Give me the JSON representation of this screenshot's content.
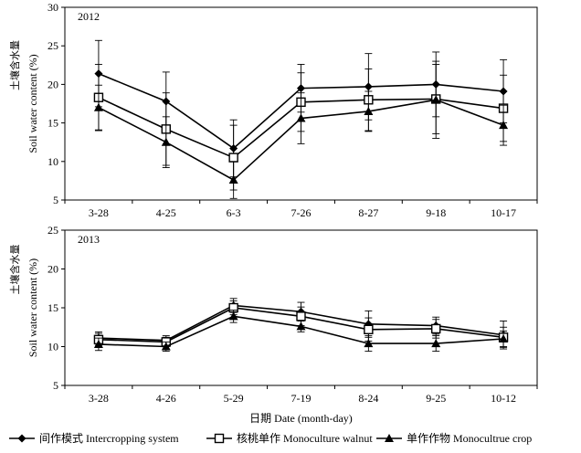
{
  "chart_data": [
    {
      "type": "line",
      "panel_label": "2012",
      "ylabel_cn": "土壤含水量",
      "ylabel_en": "Soil water content (%)",
      "categories": [
        "3-28",
        "4-25",
        "6-3",
        "7-26",
        "8-27",
        "9-18",
        "10-17"
      ],
      "ylim": [
        5,
        30
      ],
      "yticks": [
        5,
        10,
        15,
        20,
        25,
        30
      ],
      "series": [
        {
          "name": "间作模式 Intercropping system",
          "marker": "diamond",
          "values": [
            21.4,
            17.8,
            11.7,
            19.5,
            19.7,
            20.0,
            19.1
          ],
          "err": [
            4.3,
            3.8,
            3.7,
            3.1,
            4.3,
            4.2,
            4.1
          ]
        },
        {
          "name": "核桃单作 Monoculture walnut",
          "marker": "square",
          "values": [
            18.3,
            14.2,
            10.5,
            17.7,
            18.0,
            18.1,
            16.9
          ],
          "err": [
            4.3,
            4.7,
            4.2,
            3.8,
            4.0,
            4.5,
            4.3
          ]
        },
        {
          "name": "单作作物 Monocultrue crop",
          "marker": "triangle",
          "values": [
            17.0,
            12.5,
            7.6,
            15.6,
            16.5,
            18.0,
            14.7
          ],
          "err": [
            2.9,
            3.3,
            2.4,
            3.3,
            2.6,
            5.0,
            2.6
          ]
        }
      ]
    },
    {
      "type": "line",
      "panel_label": "2013",
      "ylabel_cn": "土壤含水量",
      "ylabel_en": "Soil water content (%)",
      "xlabel": "日期 Date (month-day)",
      "categories": [
        "3-28",
        "4-26",
        "5-29",
        "7-19",
        "8-24",
        "9-25",
        "10-12"
      ],
      "ylim": [
        5,
        25
      ],
      "yticks": [
        5,
        10,
        15,
        20,
        25
      ],
      "series": [
        {
          "name": "间作模式 Intercropping system",
          "marker": "diamond",
          "values": [
            11.1,
            10.8,
            15.3,
            14.5,
            12.9,
            12.7,
            11.5
          ],
          "err": [
            0.8,
            0.6,
            0.9,
            1.2,
            1.7,
            1.1,
            1.8
          ]
        },
        {
          "name": "核桃单作 Monoculture walnut",
          "marker": "square",
          "values": [
            10.9,
            10.6,
            15.0,
            13.9,
            12.2,
            12.3,
            11.2
          ],
          "err": [
            0.8,
            0.6,
            0.9,
            1.2,
            1.5,
            1.2,
            1.3
          ]
        },
        {
          "name": "单作作物 Monocultrue crop",
          "marker": "triangle",
          "values": [
            10.3,
            10.0,
            13.9,
            12.6,
            10.4,
            10.4,
            11.0
          ],
          "err": [
            0.8,
            0.6,
            0.8,
            0.7,
            1.0,
            1.0,
            1.0
          ]
        }
      ]
    }
  ],
  "legend": [
    {
      "label": "间作模式 Intercropping system",
      "marker": "diamond"
    },
    {
      "label": "核桃单作 Monoculture walnut",
      "marker": "square"
    },
    {
      "label": "单作作物 Monocultrue crop",
      "marker": "triangle"
    }
  ]
}
